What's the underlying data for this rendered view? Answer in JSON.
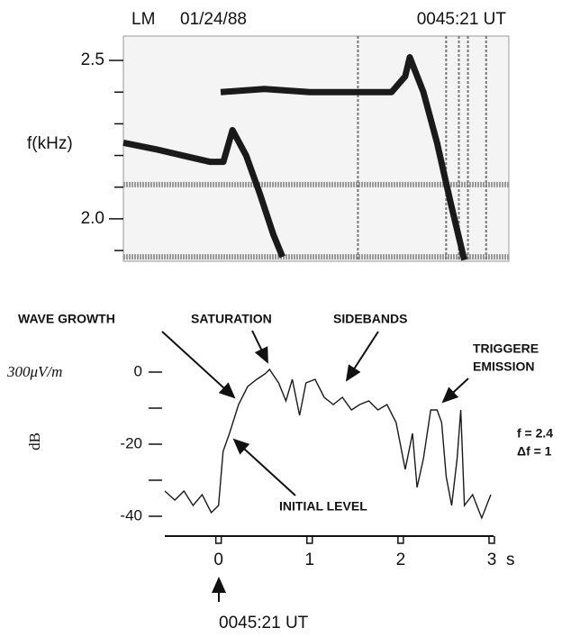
{
  "chart_data": [
    {
      "type": "spectrogram",
      "header_left": "LM",
      "header_date": "01/24/88",
      "header_time": "0045:21 UT",
      "ylabel": "f(kHz)",
      "xlim": [
        -1.05,
        3.19
      ],
      "ylim": [
        1.866,
        2.577
      ],
      "yticks": [
        2.5,
        {
          "value": 2,
          "label": "2.0"
        }
      ],
      "yminor_ticks": [
        2.4,
        2.3,
        2.2,
        2.1,
        1.9
      ],
      "color": "#1a1a1a",
      "series": [
        {
          "x": [
            -1.05,
            -0.7,
            -0.4,
            -0.1,
            0.05,
            0.15,
            0.3,
            0.45,
            0.6,
            0.7
          ],
          "values": [
            2.24,
            2.22,
            2.2,
            2.18,
            2.18,
            2.28,
            2.2,
            2.08,
            1.95,
            1.88
          ]
        },
        {
          "x": [
            0.02,
            0.5,
            1.0,
            1.5,
            1.9,
            2.05,
            2.1,
            2.25,
            2.4,
            2.55,
            2.7
          ],
          "values": [
            2.4,
            2.41,
            2.4,
            2.4,
            2.4,
            2.45,
            2.51,
            2.4,
            2.24,
            2.05,
            1.87
          ]
        }
      ],
      "bands": [
        2.108,
        1.88
      ],
      "vlines": [
        1.53,
        2.5,
        2.64,
        2.74,
        2.94
      ]
    },
    {
      "type": "line",
      "ylabel": "dB",
      "yunit_label": "300μV/m",
      "xunit": "s",
      "xlim": [
        -0.59,
        3.02
      ],
      "ylim": [
        -42,
        5
      ],
      "xticks": [
        0,
        1,
        2,
        3
      ],
      "yticks": [
        0,
        -20,
        -40
      ],
      "yminor_ticks": [
        -10,
        -30
      ],
      "series": [
        {
          "color": "#1a1a1a",
          "x": [
            -0.59,
            -0.48,
            -0.38,
            -0.28,
            -0.18,
            -0.08,
            0,
            0.05,
            0.12,
            0.22,
            0.32,
            0.42,
            0.51,
            0.56,
            0.66,
            0.74,
            0.81,
            0.89,
            0.96,
            1.06,
            1.16,
            1.26,
            1.36,
            1.46,
            1.55,
            1.65,
            1.75,
            1.85,
            1.95,
            2.05,
            2.13,
            2.18,
            2.25,
            2.33,
            2.4,
            2.45,
            2.5,
            2.56,
            2.62,
            2.66,
            2.7,
            2.79,
            2.89,
            2.99
          ],
          "values": [
            -33,
            -35.5,
            -33,
            -37,
            -34,
            -39,
            -37,
            -22,
            -17,
            -9,
            -4,
            -2,
            -0.5,
            0.75,
            -3,
            -8,
            -2,
            -12,
            -3,
            -2,
            -7,
            -9,
            -7,
            -10.5,
            -9,
            -8,
            -10.5,
            -9,
            -14,
            -27,
            -17,
            -32,
            -24,
            -10.5,
            -10.5,
            -14,
            -29,
            -37,
            -24,
            -10.5,
            -37,
            -34,
            -40.5,
            -34
          ]
        }
      ],
      "annotations": [
        "WAVE GROWTH",
        "SATURATION",
        "SIDEBANDS",
        "TRIGGERE",
        "EMISSION",
        "INITIAL LEVEL",
        "f = 2.4",
        "Δf = 1"
      ],
      "footnote": "0045:21 UT"
    }
  ]
}
